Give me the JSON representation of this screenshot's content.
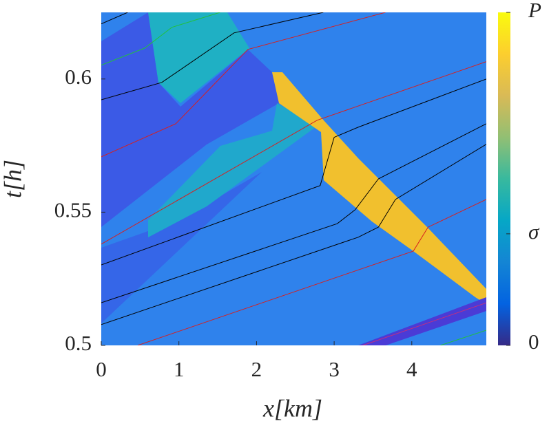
{
  "chart_data": {
    "type": "heatmap",
    "xlabel": "x[km]",
    "ylabel": "t[h]",
    "xlim": [
      0,
      4.96
    ],
    "ylim": [
      0.5,
      0.625
    ],
    "xticks": [
      0,
      1,
      2,
      3,
      4
    ],
    "yticks": [
      0.5,
      0.55,
      0.6
    ],
    "colormap": "parula",
    "clim": [
      0,
      1
    ],
    "cticks": [
      0,
      {
        "value": 0.335,
        "label": "σ"
      },
      {
        "value": 1,
        "label": "P"
      }
    ],
    "series": [
      {
        "color": "#d62020",
        "x": [
          0.47,
          4.02,
          4.21,
          4.96
        ],
        "values": [
          0.5,
          0.5354,
          0.5444,
          0.5548
        ]
      },
      {
        "color": "#000000",
        "x": [
          0,
          3.31,
          3.57,
          3.79,
          4.96
        ],
        "values": [
          0.5078,
          0.5406,
          0.5444,
          0.5548,
          0.5755
        ]
      },
      {
        "color": "#000000",
        "x": [
          0,
          3.04,
          3.27,
          3.57,
          4.96
        ],
        "values": [
          0.516,
          0.5457,
          0.5509,
          0.5625,
          0.5832
        ]
      },
      {
        "color": "#000000",
        "x": [
          0,
          2.82,
          3.0,
          3.31,
          4.96
        ],
        "values": [
          0.5302,
          0.56,
          0.5781,
          0.5819,
          0.6
        ]
      },
      {
        "color": "#d62020",
        "x": [
          0,
          2.78,
          4.96
        ],
        "values": [
          0.538,
          0.5845,
          0.6065
        ]
      },
      {
        "color": "#d62020",
        "x": [
          0,
          0.96,
          1.89,
          3.66
        ],
        "values": [
          0.5708,
          0.5832,
          0.6111,
          0.625
        ]
      },
      {
        "color": "#000000",
        "x": [
          0,
          0.78,
          1.71,
          2.86
        ],
        "values": [
          0.5922,
          0.5987,
          0.6173,
          0.625
        ]
      },
      {
        "color": "#000000",
        "x": [
          0,
          0.34
        ],
        "values": [
          0.6207,
          0.625
        ]
      },
      {
        "color": "#22c040",
        "x": [
          0,
          0.56,
          0.91,
          1.53
        ],
        "values": [
          0.6052,
          0.6116,
          0.6194,
          0.625
        ]
      },
      {
        "color": "#22c040",
        "x": [
          4.37,
          4.96
        ],
        "values": [
          0.5,
          0.5057
        ]
      },
      {
        "color": "#c03080",
        "x": [
          3.37,
          4.96
        ],
        "values": [
          0.5,
          0.516
        ]
      }
    ]
  }
}
